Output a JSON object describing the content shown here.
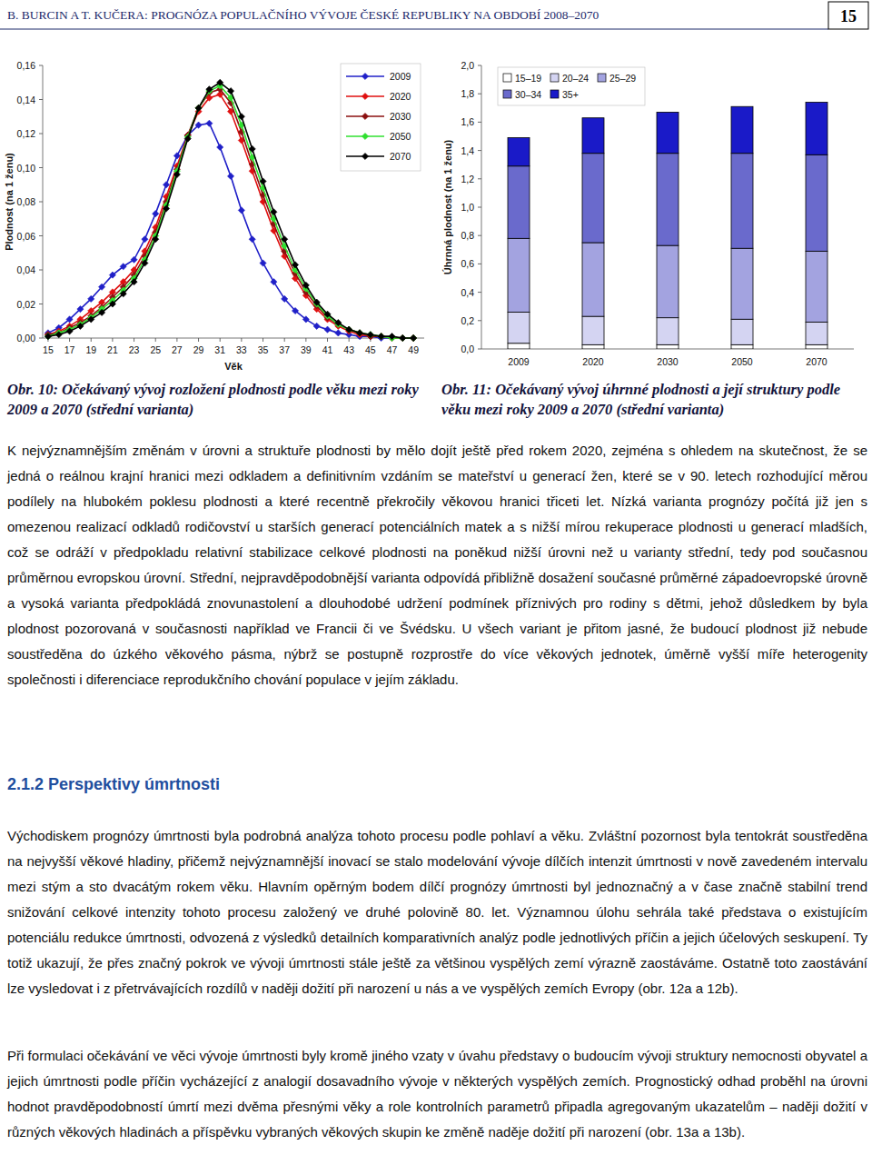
{
  "header": {
    "title": "B. BURCIN A T. KUČERA: PROGNÓZA POPULAČNÍHO VÝVOJE ČESKÉ REPUBLIKY NA OBDOBÍ 2008–2070",
    "page": "15"
  },
  "chart_data": [
    {
      "type": "line",
      "title": "Obr. 10: Očekávaný vývoj rozložení plodnosti podle věku mezi roky 2009 a 2070 (střední varianta)",
      "x_label": "Věk",
      "y_label": "Plodnost (na 1 ženu)",
      "x": [
        15,
        16,
        17,
        18,
        19,
        20,
        21,
        22,
        23,
        24,
        25,
        26,
        27,
        28,
        29,
        30,
        31,
        32,
        33,
        34,
        35,
        36,
        37,
        38,
        39,
        40,
        41,
        42,
        43,
        44,
        45,
        46,
        47,
        48,
        49
      ],
      "series": [
        {
          "name": "2009",
          "color": "#2020c8",
          "values": [
            0.003,
            0.006,
            0.011,
            0.017,
            0.023,
            0.03,
            0.037,
            0.042,
            0.046,
            0.058,
            0.073,
            0.09,
            0.107,
            0.119,
            0.125,
            0.126,
            0.112,
            0.095,
            0.075,
            0.058,
            0.044,
            0.033,
            0.023,
            0.016,
            0.011,
            0.007,
            0.005,
            0.003,
            0.002,
            0.001,
            0.001,
            0,
            0,
            0,
            0
          ]
        },
        {
          "name": "2020",
          "color": "#e01010",
          "values": [
            0.002,
            0.004,
            0.007,
            0.011,
            0.016,
            0.021,
            0.027,
            0.033,
            0.04,
            0.051,
            0.065,
            0.083,
            0.101,
            0.119,
            0.133,
            0.141,
            0.143,
            0.133,
            0.116,
            0.098,
            0.08,
            0.063,
            0.048,
            0.035,
            0.025,
            0.017,
            0.011,
            0.007,
            0.004,
            0.002,
            0.001,
            0.001,
            0,
            0,
            0
          ]
        },
        {
          "name": "2030",
          "color": "#8b1010",
          "values": [
            0.002,
            0.003,
            0.006,
            0.009,
            0.013,
            0.018,
            0.024,
            0.03,
            0.037,
            0.048,
            0.062,
            0.08,
            0.099,
            0.119,
            0.135,
            0.144,
            0.146,
            0.138,
            0.121,
            0.102,
            0.084,
            0.067,
            0.051,
            0.038,
            0.027,
            0.019,
            0.012,
            0.008,
            0.005,
            0.003,
            0.001,
            0.001,
            0,
            0,
            0
          ]
        },
        {
          "name": "2050",
          "color": "#30e030",
          "values": [
            0.001,
            0.003,
            0.005,
            0.008,
            0.012,
            0.017,
            0.022,
            0.028,
            0.035,
            0.046,
            0.06,
            0.078,
            0.098,
            0.118,
            0.135,
            0.145,
            0.148,
            0.141,
            0.125,
            0.106,
            0.088,
            0.07,
            0.054,
            0.04,
            0.029,
            0.02,
            0.013,
            0.008,
            0.005,
            0.003,
            0.002,
            0.001,
            0,
            0,
            0
          ]
        },
        {
          "name": "2070",
          "color": "#000000",
          "values": [
            0.001,
            0.002,
            0.004,
            0.007,
            0.011,
            0.015,
            0.02,
            0.026,
            0.033,
            0.044,
            0.058,
            0.076,
            0.096,
            0.117,
            0.135,
            0.146,
            0.15,
            0.145,
            0.13,
            0.111,
            0.092,
            0.074,
            0.058,
            0.043,
            0.031,
            0.021,
            0.014,
            0.009,
            0.005,
            0.003,
            0.002,
            0.001,
            0.001,
            0,
            0
          ]
        }
      ],
      "xlim": [
        14.5,
        50
      ],
      "xticks": [
        15,
        17,
        19,
        21,
        23,
        25,
        27,
        29,
        31,
        33,
        35,
        37,
        39,
        41,
        43,
        45,
        47,
        49
      ],
      "ylim": [
        0,
        0.16
      ],
      "yticks": [
        {
          "value": 0,
          "label": "0,00"
        },
        {
          "value": 0.02,
          "label": "0,02"
        },
        {
          "value": 0.04,
          "label": "0,04"
        },
        {
          "value": 0.06,
          "label": "0,06"
        },
        {
          "value": 0.08,
          "label": "0,08"
        },
        {
          "value": 0.1,
          "label": "0,10"
        },
        {
          "value": 0.12,
          "label": "0,12"
        },
        {
          "value": 0.14,
          "label": "0,14"
        },
        {
          "value": 0.16,
          "label": "0,16"
        }
      ],
      "grid": false,
      "legend": "upper right",
      "marker": "diamond"
    },
    {
      "type": "bar",
      "stacked": true,
      "title": "Obr. 11: Očekávaný vývoj úhrnné plodnosti a její struktury podle věku mezi roky 2009 a 2070 (střední varianta)",
      "y_label": "Úhrnná plodnost (na 1 ženu)",
      "categories": [
        "2009",
        "2020",
        "2030",
        "2050",
        "2070"
      ],
      "series": [
        {
          "name": "15–19",
          "color": "#ffffff",
          "values": [
            0.04,
            0.03,
            0.03,
            0.03,
            0.03
          ]
        },
        {
          "name": "20–24",
          "color": "#d4d4f2",
          "values": [
            0.22,
            0.2,
            0.19,
            0.18,
            0.16
          ]
        },
        {
          "name": "25–29",
          "color": "#a3a3e0",
          "values": [
            0.52,
            0.52,
            0.51,
            0.5,
            0.5
          ]
        },
        {
          "name": "30–34",
          "color": "#6a6acc",
          "values": [
            0.51,
            0.63,
            0.65,
            0.67,
            0.68
          ]
        },
        {
          "name": "35+",
          "color": "#1a1ac8",
          "values": [
            0.2,
            0.25,
            0.29,
            0.33,
            0.37
          ]
        }
      ],
      "ylim": [
        0,
        2
      ],
      "yticks": [
        {
          "value": 0,
          "label": "0,0"
        },
        {
          "value": 0.2,
          "label": "0,2"
        },
        {
          "value": 0.4,
          "label": "0,4"
        },
        {
          "value": 0.6,
          "label": "0,6"
        },
        {
          "value": 0.8,
          "label": "0,8"
        },
        {
          "value": 1,
          "label": "1,0"
        },
        {
          "value": 1.2,
          "label": "1,2"
        },
        {
          "value": 1.4,
          "label": "1,4"
        },
        {
          "value": 1.6,
          "label": "1,6"
        },
        {
          "value": 1.8,
          "label": "1,8"
        },
        {
          "value": 2,
          "label": "2,0"
        }
      ],
      "grid": false,
      "legend": "upper left"
    }
  ],
  "text": {
    "paragraphs": [
      "K nejvýznamnějším změnám v úrovni a struktuře plodnosti by mělo dojít ještě před rokem 2020, zejména s ohledem na skutečnost, že se jedná o reálnou krajní hranici mezi odkladem a definitivním vzdáním se mateřství u generací žen, které se v 90. letech rozhodující měrou podílely na hlubokém poklesu plodnosti a které recentně překročily věkovou hranici třiceti let. Nízká varianta prognózy počítá již jen s omezenou realizací odkladů rodičovství u starších generací potenciálních matek a s nižší mírou rekuperace plodnosti u generací mladších, což se odráží v předpokladu relativní stabilizace celkové plodnosti na poněkud nižší úrovni než u varianty střední, tedy pod současnou průměrnou evropskou úrovní. Střední, nejpravděpodobnější varianta odpovídá přibližně dosažení současné průměrné západoevropské úrovně a vysoká varianta předpokládá znovunastolení a dlouhodobé udržení podmínek příznivých pro rodiny s dětmi, jehož důsledkem by byla plodnost pozorovaná v současnosti například ve Francii či ve Švédsku. U všech variant je přitom jasné, že budoucí plodnost již nebude soustředěna do úzkého věkového pásma, nýbrž se postupně rozprostře do více věkových jednotek, úměrně vyšší míře heterogenity společnosti i diferenciace reprodukčního chování populace v jejím základu."
    ],
    "heading": "2.1.2 Perspektivy úmrtnosti",
    "section_paragraphs": [
      "Východiskem prognózy úmrtnosti byla podrobná analýza tohoto procesu podle pohlaví a věku. Zvláštní pozornost byla tentokrát soustředěna na nejvyšší věkové hladiny, přičemž nejvýznamnější inovací se stalo modelování vývoje dílčích intenzit úmrtnosti v nově zavedeném intervalu mezi stým a sto dvacátým rokem věku. Hlavním opěrným bodem dílčí prognózy úmrtnosti byl jednoznačný a v čase značně stabilní trend snižování celkové intenzity tohoto procesu založený ve druhé polovině 80. let. Významnou úlohu sehrála také představa o existujícím potenciálu redukce úmrtnosti, odvozená z výsledků detailních komparativních analýz podle jednotlivých příčin a jejich účelových seskupení. Ty totiž ukazují, že přes značný pokrok ve vývoji úmrtnosti stále ještě za většinou vyspělých zemí výrazně zaostáváme. Ostatně toto zaostávání lze vysledovat i z přetrvávajících rozdílů v naději dožití při narození u nás a ve vyspělých zemích Evropy (obr. 12a a 12b).",
      "Při formulaci očekávání ve věci vývoje úmrtnosti byly kromě jiného vzaty v úvahu představy o budoucím vývoji struktury nemocnosti obyvatel a jejich úmrtnosti podle příčin vycházející z analogií dosavadního vývoje v některých vyspělých zemích. Prognostický odhad proběhl na úrovni hodnot pravděpodobností úmrtí mezi dvěma přesnými věky a role kontrolních parametrů připadla agregovaným ukazatelům – naději dožití v různých věkových hladinách a příspěvku vybraných věkových skupin ke změně naděje dožití při narození (obr. 13a a 13b)."
    ]
  }
}
